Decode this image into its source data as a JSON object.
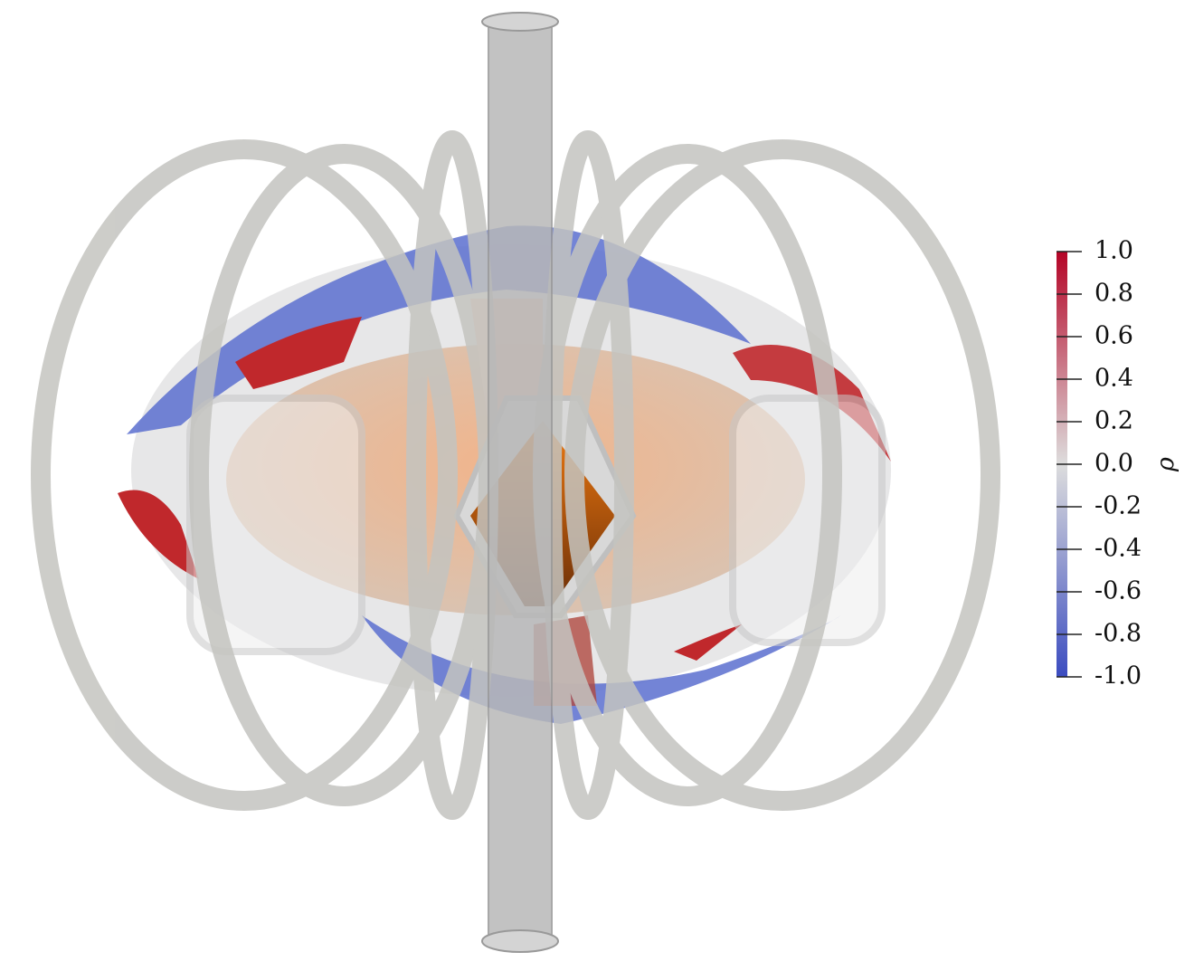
{
  "colorbar": {
    "label": "ρ",
    "lim": [
      -1,
      1
    ],
    "ticks": [
      {
        "value": 1,
        "label": "1.0"
      },
      0.8,
      0.6,
      0.4,
      0.2,
      {
        "value": 0,
        "label": "0.0"
      },
      -0.2,
      -0.4,
      -0.6,
      -0.8,
      {
        "value": -1,
        "label": "-1.0"
      }
    ],
    "colors": [
      "#3b4cc0",
      "#dddddd",
      "#b40426"
    ]
  }
}
